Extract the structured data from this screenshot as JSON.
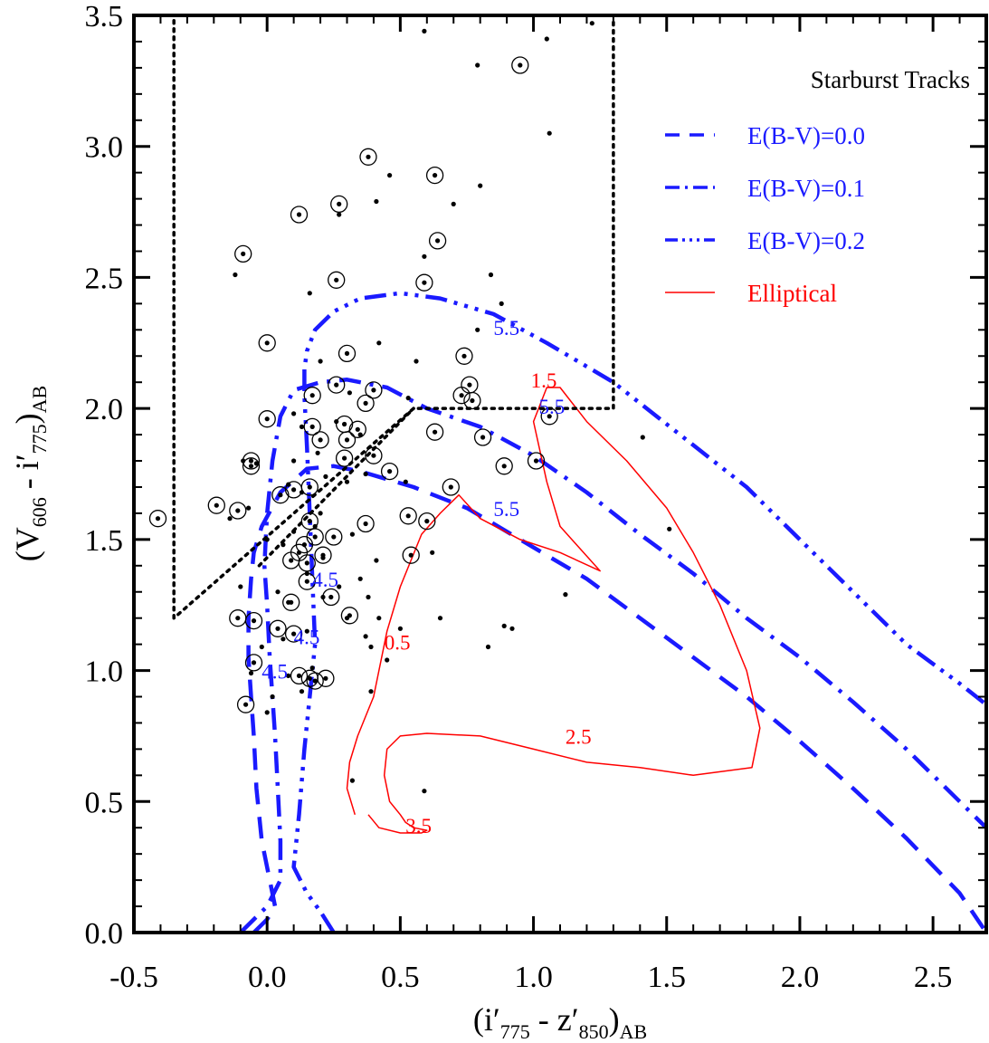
{
  "chart_data": {
    "type": "scatter",
    "title": "",
    "xlabel": {
      "pre": "(i′",
      "sub1": "775",
      "mid": " - z′",
      "sub2": "850",
      "post": ")",
      "sub3": "AB"
    },
    "ylabel": {
      "pre": "(V",
      "sub1": "606",
      "mid": " - i′",
      "sub2": "775",
      "post": ")",
      "sub3": "AB"
    },
    "xlim": [
      -0.5,
      2.7
    ],
    "ylim": [
      0.0,
      3.5
    ],
    "xticks": [
      {
        "v": -0.5,
        "label": "-0.5"
      },
      {
        "v": 0.0,
        "label": "0.0"
      },
      {
        "v": 0.5,
        "label": "0.5"
      },
      {
        "v": 1.0,
        "label": "1.0"
      },
      {
        "v": 1.5,
        "label": "1.5"
      },
      {
        "v": 2.0,
        "label": "2.0"
      },
      {
        "v": 2.5,
        "label": "2.5"
      }
    ],
    "yticks": [
      {
        "v": 0.0,
        "label": "0.0"
      },
      {
        "v": 0.5,
        "label": "0.5"
      },
      {
        "v": 1.0,
        "label": "1.0"
      },
      {
        "v": 1.5,
        "label": "1.5"
      },
      {
        "v": 2.0,
        "label": "2.0"
      },
      {
        "v": 2.5,
        "label": "2.5"
      },
      {
        "v": 3.0,
        "label": "3.0"
      },
      {
        "v": 3.5,
        "label": "3.5"
      }
    ],
    "legend": {
      "placement": "top-right",
      "title": "Starburst Tracks",
      "entries": [
        {
          "label": "E(B-V)=0.0",
          "dash": "dash",
          "color": "#1a1aff"
        },
        {
          "label": "E(B-V)=0.1",
          "dash": "dashdot",
          "color": "#1a1aff"
        },
        {
          "label": "E(B-V)=0.2",
          "dash": "dashdotdotdot",
          "color": "#1a1aff"
        },
        {
          "label": "Elliptical",
          "dash": "solid",
          "color": "#ff0000"
        }
      ]
    },
    "series": [
      {
        "name": "E(B-V)=0.0",
        "dash": "dash",
        "color": "#1a1aff",
        "x": [
          -0.05,
          0.0,
          0.03,
          0.01,
          -0.02,
          -0.04,
          -0.05,
          -0.06,
          -0.07,
          -0.07,
          -0.06,
          -0.05,
          -0.02,
          0.05,
          0.15,
          0.25,
          0.35,
          0.55,
          0.75,
          0.95,
          1.2,
          1.4,
          1.6,
          1.8,
          2.0,
          2.2,
          2.4,
          2.6,
          2.7
        ],
        "y": [
          0.0,
          0.05,
          0.1,
          0.2,
          0.35,
          0.55,
          0.75,
          0.9,
          1.05,
          1.2,
          1.35,
          1.45,
          1.55,
          1.68,
          1.77,
          1.78,
          1.76,
          1.7,
          1.62,
          1.5,
          1.35,
          1.2,
          1.05,
          0.9,
          0.73,
          0.55,
          0.36,
          0.15,
          0.0
        ]
      },
      {
        "name": "E(B-V)=0.1",
        "dash": "dashdot",
        "color": "#1a1aff",
        "x": [
          -0.1,
          -0.05,
          0.0,
          0.05,
          0.05,
          0.04,
          0.03,
          0.02,
          0.01,
          0.0,
          -0.01,
          0.0,
          0.02,
          0.05,
          0.1,
          0.2,
          0.3,
          0.45,
          0.6,
          0.8,
          1.0,
          1.2,
          1.4,
          1.6,
          1.8,
          2.0,
          2.2,
          2.4,
          2.6,
          2.7
        ],
        "y": [
          0.0,
          0.05,
          0.1,
          0.2,
          0.35,
          0.55,
          0.75,
          0.9,
          1.05,
          1.25,
          1.4,
          1.6,
          1.8,
          1.97,
          2.07,
          2.1,
          2.11,
          2.08,
          2.0,
          1.93,
          1.82,
          1.68,
          1.52,
          1.37,
          1.2,
          1.05,
          0.88,
          0.7,
          0.5,
          0.4
        ]
      },
      {
        "name": "E(B-V)=0.2",
        "dash": "dashdotdotdot",
        "color": "#1a1aff",
        "x": [
          0.25,
          0.2,
          0.15,
          0.1,
          0.12,
          0.14,
          0.16,
          0.18,
          0.17,
          0.16,
          0.15,
          0.14,
          0.14,
          0.15,
          0.18,
          0.25,
          0.35,
          0.5,
          0.65,
          0.85,
          1.05,
          1.3,
          1.55,
          1.8,
          2.0,
          2.2,
          2.4,
          2.6,
          2.7
        ],
        "y": [
          0.0,
          0.08,
          0.15,
          0.25,
          0.45,
          0.7,
          0.9,
          1.1,
          1.35,
          1.6,
          1.85,
          2.05,
          2.15,
          2.22,
          2.3,
          2.37,
          2.42,
          2.44,
          2.42,
          2.36,
          2.25,
          2.1,
          1.9,
          1.7,
          1.5,
          1.3,
          1.1,
          0.95,
          0.87
        ]
      },
      {
        "name": "Elliptical",
        "dash": "solid",
        "color": "#ff0000",
        "x": [
          0.33,
          0.3,
          0.31,
          0.34,
          0.38,
          0.4,
          0.42,
          0.45,
          0.5,
          0.58,
          0.65,
          0.72,
          0.8,
          0.95,
          1.1,
          1.25,
          1.1,
          1.05,
          1.0,
          1.05,
          1.1,
          1.2,
          1.35,
          1.5,
          1.6,
          1.7,
          1.8,
          1.85,
          1.82,
          1.6,
          1.4,
          1.2,
          1.0,
          0.8,
          0.6,
          0.5,
          0.45,
          0.44,
          0.46,
          0.5,
          0.52,
          0.55,
          0.6,
          0.58,
          0.5,
          0.42,
          0.38
        ],
        "y": [
          0.45,
          0.55,
          0.65,
          0.75,
          0.85,
          0.9,
          1.0,
          1.15,
          1.32,
          1.52,
          1.6,
          1.67,
          1.58,
          1.5,
          1.45,
          1.38,
          1.55,
          1.72,
          1.95,
          2.08,
          2.08,
          1.95,
          1.8,
          1.62,
          1.45,
          1.25,
          1.0,
          0.78,
          0.63,
          0.6,
          0.63,
          0.65,
          0.7,
          0.75,
          0.76,
          0.75,
          0.7,
          0.6,
          0.5,
          0.45,
          0.42,
          0.4,
          0.39,
          0.38,
          0.38,
          0.4,
          0.45
        ]
      },
      {
        "name": "",
        "dash": "dotted",
        "color": "#000000",
        "x": [
          -0.35,
          -0.35,
          0.55,
          1.3,
          1.3
        ],
        "y": [
          3.48,
          1.2,
          2.0,
          2.0,
          3.48
        ]
      },
      {
        "name": "",
        "dash": "dotted",
        "color": "#000000",
        "x": [
          -0.03,
          0.55
        ],
        "y": [
          1.4,
          2.0
        ]
      }
    ],
    "track_labels": [
      {
        "text": "5.5",
        "x": 0.85,
        "y": 2.28,
        "color": "#1a1aff"
      },
      {
        "text": "5.5",
        "x": 0.85,
        "y": 1.59,
        "color": "#1a1aff"
      },
      {
        "text": "5.5",
        "x": 1.02,
        "y": 1.98,
        "color": "#1a1aff"
      },
      {
        "text": "4.5",
        "x": 0.17,
        "y": 1.32,
        "color": "#1a1aff"
      },
      {
        "text": "4.5",
        "x": 0.1,
        "y": 1.1,
        "color": "#1a1aff"
      },
      {
        "text": "4.5",
        "x": -0.02,
        "y": 0.97,
        "color": "#1a1aff"
      },
      {
        "text": "1.5",
        "x": 0.99,
        "y": 2.08,
        "color": "#ff0000"
      },
      {
        "text": "0.5",
        "x": 0.44,
        "y": 1.08,
        "color": "#ff0000"
      },
      {
        "text": "2.5",
        "x": 1.12,
        "y": 0.72,
        "color": "#ff0000"
      },
      {
        "text": "3.5",
        "x": 0.52,
        "y": 0.38,
        "color": "#ff0000"
      }
    ],
    "points": [
      [
        0.38,
        2.96,
        1
      ],
      [
        0.12,
        2.74,
        1
      ],
      [
        0.27,
        2.78,
        1
      ],
      [
        -0.09,
        2.59,
        1
      ],
      [
        0.63,
        2.89,
        1
      ],
      [
        0.64,
        2.64,
        1
      ],
      [
        0.95,
        3.31,
        1
      ],
      [
        0.26,
        2.49,
        1
      ],
      [
        0.59,
        2.48,
        1
      ],
      [
        0.0,
        2.25,
        1
      ],
      [
        0.3,
        2.21,
        1
      ],
      [
        0.74,
        2.2,
        1
      ],
      [
        0.17,
        2.05,
        1
      ],
      [
        0.26,
        2.09,
        1
      ],
      [
        0.4,
        2.07,
        1
      ],
      [
        0.37,
        2.02,
        1
      ],
      [
        0.73,
        2.05,
        1
      ],
      [
        0.76,
        2.09,
        1
      ],
      [
        0.77,
        2.03,
        1
      ],
      [
        0.0,
        1.96,
        1
      ],
      [
        0.17,
        1.93,
        1
      ],
      [
        0.29,
        1.94,
        1
      ],
      [
        0.34,
        1.92,
        1
      ],
      [
        0.63,
        1.91,
        1
      ],
      [
        0.81,
        1.89,
        1
      ],
      [
        1.06,
        1.97,
        1
      ],
      [
        0.2,
        1.88,
        1
      ],
      [
        0.3,
        1.88,
        1
      ],
      [
        0.29,
        1.81,
        1
      ],
      [
        0.4,
        1.82,
        1
      ],
      [
        -0.06,
        1.8,
        1
      ],
      [
        -0.06,
        1.78,
        1
      ],
      [
        0.46,
        1.76,
        1
      ],
      [
        0.89,
        1.78,
        1
      ],
      [
        1.01,
        1.8,
        1
      ],
      [
        0.1,
        1.69,
        1
      ],
      [
        0.16,
        1.7,
        1
      ],
      [
        0.05,
        1.67,
        1
      ],
      [
        0.69,
        1.7,
        1
      ],
      [
        -0.19,
        1.63,
        1
      ],
      [
        -0.11,
        1.61,
        1
      ],
      [
        -0.41,
        1.58,
        1
      ],
      [
        0.16,
        1.57,
        1
      ],
      [
        0.37,
        1.56,
        1
      ],
      [
        0.53,
        1.59,
        1
      ],
      [
        0.6,
        1.57,
        1
      ],
      [
        0.18,
        1.51,
        1
      ],
      [
        0.25,
        1.51,
        1
      ],
      [
        0.14,
        1.48,
        1
      ],
      [
        0.12,
        1.45,
        1
      ],
      [
        0.21,
        1.44,
        1
      ],
      [
        0.54,
        1.44,
        1
      ],
      [
        0.09,
        1.42,
        1
      ],
      [
        0.15,
        1.41,
        1
      ],
      [
        0.15,
        1.34,
        1
      ],
      [
        0.24,
        1.28,
        1
      ],
      [
        0.09,
        1.26,
        1
      ],
      [
        -0.11,
        1.2,
        1
      ],
      [
        -0.05,
        1.19,
        1
      ],
      [
        0.31,
        1.21,
        1
      ],
      [
        0.04,
        1.16,
        1
      ],
      [
        0.1,
        1.14,
        1
      ],
      [
        -0.05,
        1.03,
        1
      ],
      [
        0.12,
        0.98,
        1
      ],
      [
        0.16,
        0.97,
        1
      ],
      [
        0.18,
        0.96,
        1
      ],
      [
        0.22,
        0.97,
        1
      ],
      [
        -0.08,
        0.87,
        1
      ],
      [
        1.22,
        3.47,
        0
      ],
      [
        0.59,
        3.44,
        0
      ],
      [
        1.05,
        3.41,
        0
      ],
      [
        0.79,
        3.31,
        0
      ],
      [
        1.06,
        3.05,
        0
      ],
      [
        0.46,
        2.89,
        0
      ],
      [
        0.8,
        2.85,
        0
      ],
      [
        0.41,
        2.79,
        0
      ],
      [
        0.7,
        2.78,
        0
      ],
      [
        0.27,
        2.74,
        0
      ],
      [
        0.59,
        2.58,
        0
      ],
      [
        -0.12,
        2.51,
        0
      ],
      [
        0.84,
        2.51,
        0
      ],
      [
        0.16,
        2.44,
        0
      ],
      [
        0.88,
        2.4,
        0
      ],
      [
        0.79,
        2.3,
        0
      ],
      [
        0.42,
        2.25,
        0
      ],
      [
        0.2,
        2.18,
        0
      ],
      [
        0.56,
        2.18,
        0
      ],
      [
        0.31,
        2.06,
        0
      ],
      [
        0.53,
        2.04,
        0
      ],
      [
        0.1,
        1.98,
        0
      ],
      [
        0.13,
        1.93,
        0
      ],
      [
        0.26,
        1.95,
        0
      ],
      [
        0.35,
        1.9,
        0
      ],
      [
        0.19,
        1.83,
        0
      ],
      [
        1.41,
        1.89,
        0
      ],
      [
        0.1,
        1.8,
        0
      ],
      [
        -0.09,
        1.8,
        0
      ],
      [
        -0.04,
        1.79,
        0
      ],
      [
        0.37,
        1.75,
        0
      ],
      [
        0.22,
        1.74,
        0
      ],
      [
        0.52,
        1.72,
        0
      ],
      [
        0.08,
        1.71,
        0
      ],
      [
        0.3,
        1.72,
        0
      ],
      [
        0.13,
        1.68,
        0
      ],
      [
        -0.07,
        1.62,
        0
      ],
      [
        0.2,
        1.6,
        0
      ],
      [
        -0.14,
        1.58,
        0
      ],
      [
        0.18,
        1.55,
        0
      ],
      [
        0.1,
        1.53,
        0
      ],
      [
        0.32,
        1.52,
        0
      ],
      [
        0.0,
        1.5,
        0
      ],
      [
        0.06,
        1.48,
        0
      ],
      [
        0.21,
        1.43,
        0
      ],
      [
        0.62,
        1.45,
        0
      ],
      [
        0.41,
        1.42,
        0
      ],
      [
        0.15,
        1.37,
        0
      ],
      [
        0.35,
        1.35,
        0
      ],
      [
        0.27,
        1.32,
        0
      ],
      [
        -0.1,
        1.32,
        0
      ],
      [
        0.04,
        1.3,
        0
      ],
      [
        0.21,
        1.28,
        0
      ],
      [
        0.38,
        1.28,
        0
      ],
      [
        1.12,
        1.29,
        0
      ],
      [
        0.08,
        1.26,
        0
      ],
      [
        0.3,
        1.2,
        0
      ],
      [
        0.65,
        1.2,
        0
      ],
      [
        0.42,
        1.2,
        0
      ],
      [
        0.89,
        1.17,
        0
      ],
      [
        0.92,
        1.16,
        0
      ],
      [
        0.06,
        1.12,
        0
      ],
      [
        0.15,
        1.15,
        0
      ],
      [
        0.5,
        1.16,
        0
      ],
      [
        0.37,
        1.13,
        0
      ],
      [
        0.39,
        1.09,
        0
      ],
      [
        0.83,
        1.09,
        0
      ],
      [
        -0.02,
        1.09,
        0
      ],
      [
        0.45,
        1.04,
        0
      ],
      [
        0.17,
        1.01,
        0
      ],
      [
        0.08,
        0.98,
        0
      ],
      [
        -0.06,
        0.99,
        0
      ],
      [
        0.02,
        0.9,
        0
      ],
      [
        0.13,
        0.92,
        0
      ],
      [
        0.39,
        0.92,
        0
      ],
      [
        0.0,
        0.84,
        0
      ],
      [
        0.32,
        0.58,
        0
      ],
      [
        0.59,
        0.54,
        0
      ],
      [
        1.51,
        1.54,
        0
      ]
    ]
  }
}
